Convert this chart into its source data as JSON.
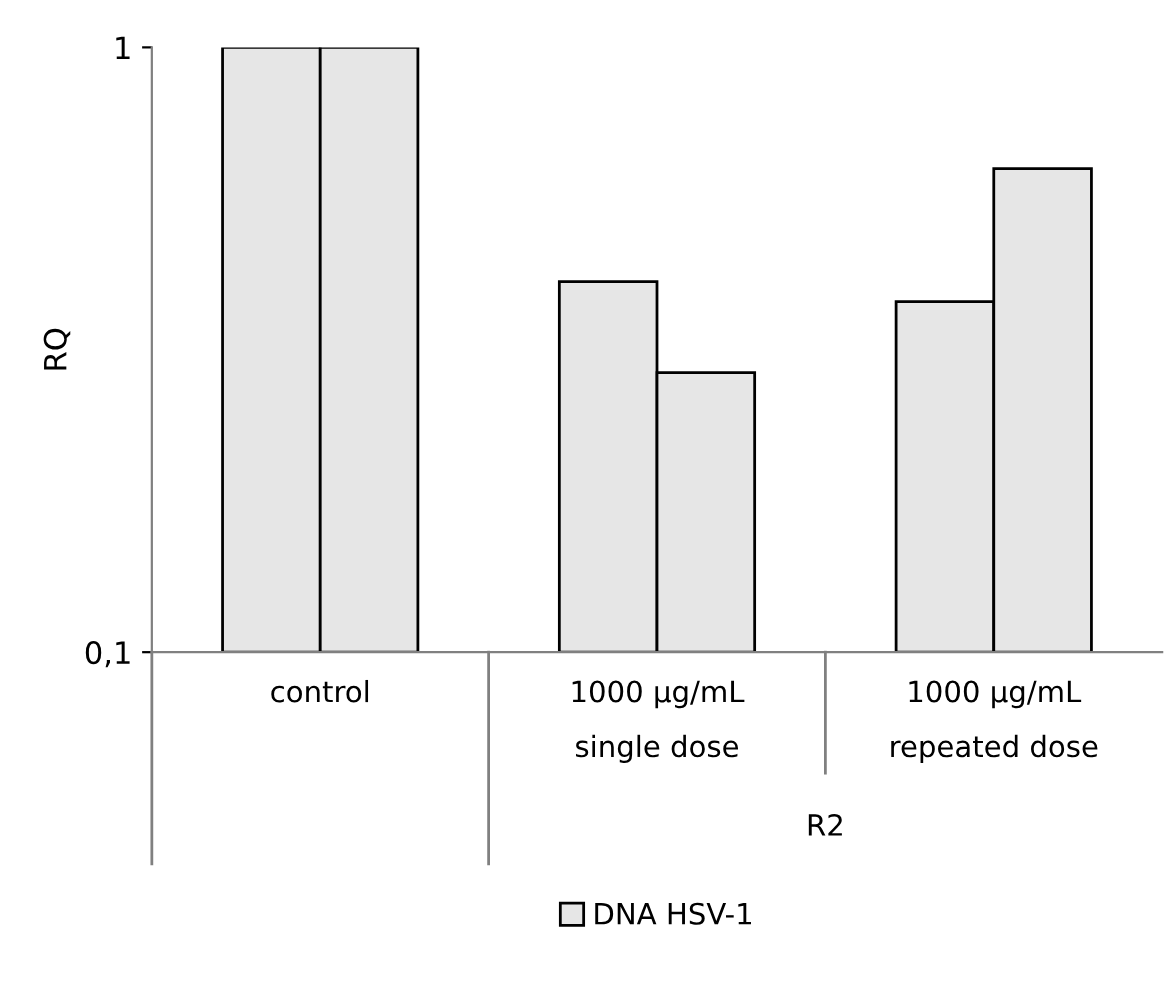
{
  "chart_data": {
    "type": "bar",
    "ylabel": "RQ",
    "categories": [
      "control",
      "1000 µg/mL\nsingle dose",
      "1000 µg/mL\nrepeated dose"
    ],
    "series": [
      {
        "name": "DNA HSV-1",
        "color": "#e6e6e6",
        "values": [
          1,
          0.41,
          0.38
        ]
      },
      {
        "color": "#e6e6e6",
        "values": [
          1,
          0.29,
          0.63
        ]
      }
    ],
    "annotations": [
      "R2"
    ],
    "log": true,
    "ylim": [
      0.1,
      1
    ],
    "yticks": [
      {
        "value": 0.1,
        "label": "0,1"
      },
      1
    ],
    "grid": false,
    "legend": "bottom"
  }
}
